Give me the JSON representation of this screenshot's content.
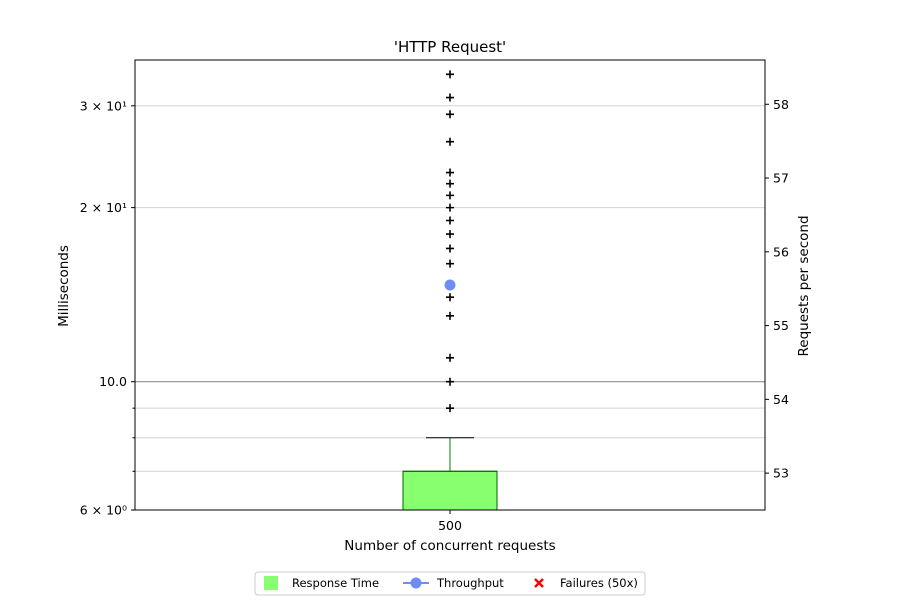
{
  "chart_data": {
    "type": "box",
    "title": "'HTTP Request'",
    "xlabel": "Number of concurrent requests",
    "ylabel": "Milliseconds",
    "y2label": "Requests per second",
    "categories": [
      "500"
    ],
    "y_scale": "log",
    "ylim": [
      6,
      36
    ],
    "y2lim": [
      52.5,
      58.6
    ],
    "y_tick_labels": [
      {
        "value": 6,
        "label": "6 × 10⁰"
      },
      {
        "value": 10,
        "label": "10.0"
      },
      {
        "value": 20,
        "label": "2 × 10¹"
      },
      {
        "value": 30,
        "label": "3 × 10¹"
      }
    ],
    "y_minor_ticks": [
      7,
      8,
      9
    ],
    "y2_ticks": [
      53,
      54,
      55,
      56,
      57,
      58
    ],
    "grid": true,
    "legend_position": "bottom-center",
    "response_time_box": {
      "category": "500",
      "q1": 6,
      "median": 7,
      "q3": 7,
      "whisker_low": 6,
      "whisker_high": 8,
      "outliers": [
        9,
        10,
        11,
        13,
        14,
        16,
        17,
        18,
        19,
        20,
        21,
        22,
        23,
        26,
        29,
        31,
        34
      ]
    },
    "throughput": [
      {
        "x": "500",
        "y": 55.55
      }
    ],
    "failures": [],
    "legend": [
      {
        "name": "Response Time",
        "marker": "square",
        "color": "#88ff6e"
      },
      {
        "name": "Throughput",
        "marker": "line-circle",
        "color": "#6f8ef5"
      },
      {
        "name": "Failures (50x)",
        "marker": "x",
        "color": "#ff0000"
      }
    ]
  }
}
